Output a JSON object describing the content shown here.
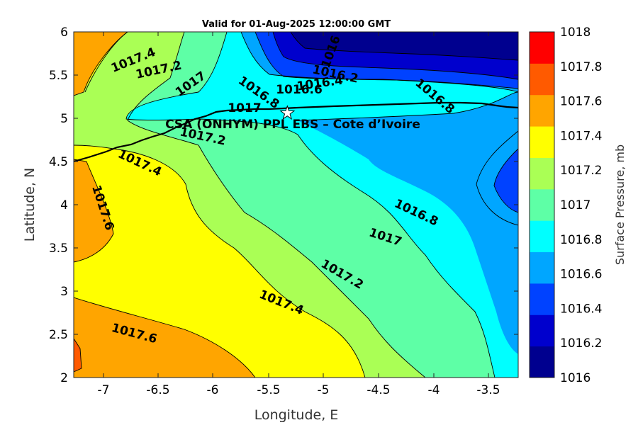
{
  "title": "Valid for 01-Aug-2025 12:00:00 GMT",
  "site_label": "CSA (ONHYM) PPL EBS  – Cote d’Ivoire",
  "colors": {
    "1016": "#00008f",
    "1016.2": "#0000cd",
    "1016.4": "#0042ff",
    "1016.6": "#00a6ff",
    "1016.8": "#00ffff",
    "1017": "#5effa6",
    "1017.2": "#aaff55",
    "1017.4": "#ffff00",
    "1017.6": "#ffa500",
    "1017.8": "#ff5a00",
    "1018": "#ff0000"
  },
  "chart_data": {
    "type": "contour-map",
    "variable": "Surface Pressure",
    "units": "mb",
    "xlabel": "Longitude, E",
    "ylabel": "Latitude, N",
    "xlim": [
      -7.3,
      -3.2
    ],
    "ylim": [
      2,
      6
    ],
    "xticks": [
      "-7",
      "-6.5",
      "-6",
      "-5.5",
      "-5",
      "-4.5",
      "-4",
      "-3.5"
    ],
    "yticks": [
      "2",
      "2.5",
      "3",
      "3.5",
      "4",
      "4.5",
      "5",
      "5.5",
      "6"
    ],
    "colorbar": {
      "label": "Surface Pressure, mb",
      "levels": [
        "1016",
        "1016.2",
        "1016.4",
        "1016.6",
        "1016.8",
        "1017",
        "1017.2",
        "1017.4",
        "1017.6",
        "1017.8",
        "1018"
      ]
    },
    "contour_labels": [
      "1017.4",
      "1017.2",
      "1017",
      "1016.8",
      "1017",
      "1016.6",
      "1016.4",
      "1016.2",
      "1016",
      "1016.8",
      "1017.2",
      "1017.4",
      "1017.6",
      "1016.8",
      "1017",
      "1017.2",
      "1017.4",
      "1017.6"
    ],
    "site": {
      "lon": -5.33,
      "lat": 5.06,
      "marker": "star"
    },
    "coastline": "present"
  }
}
